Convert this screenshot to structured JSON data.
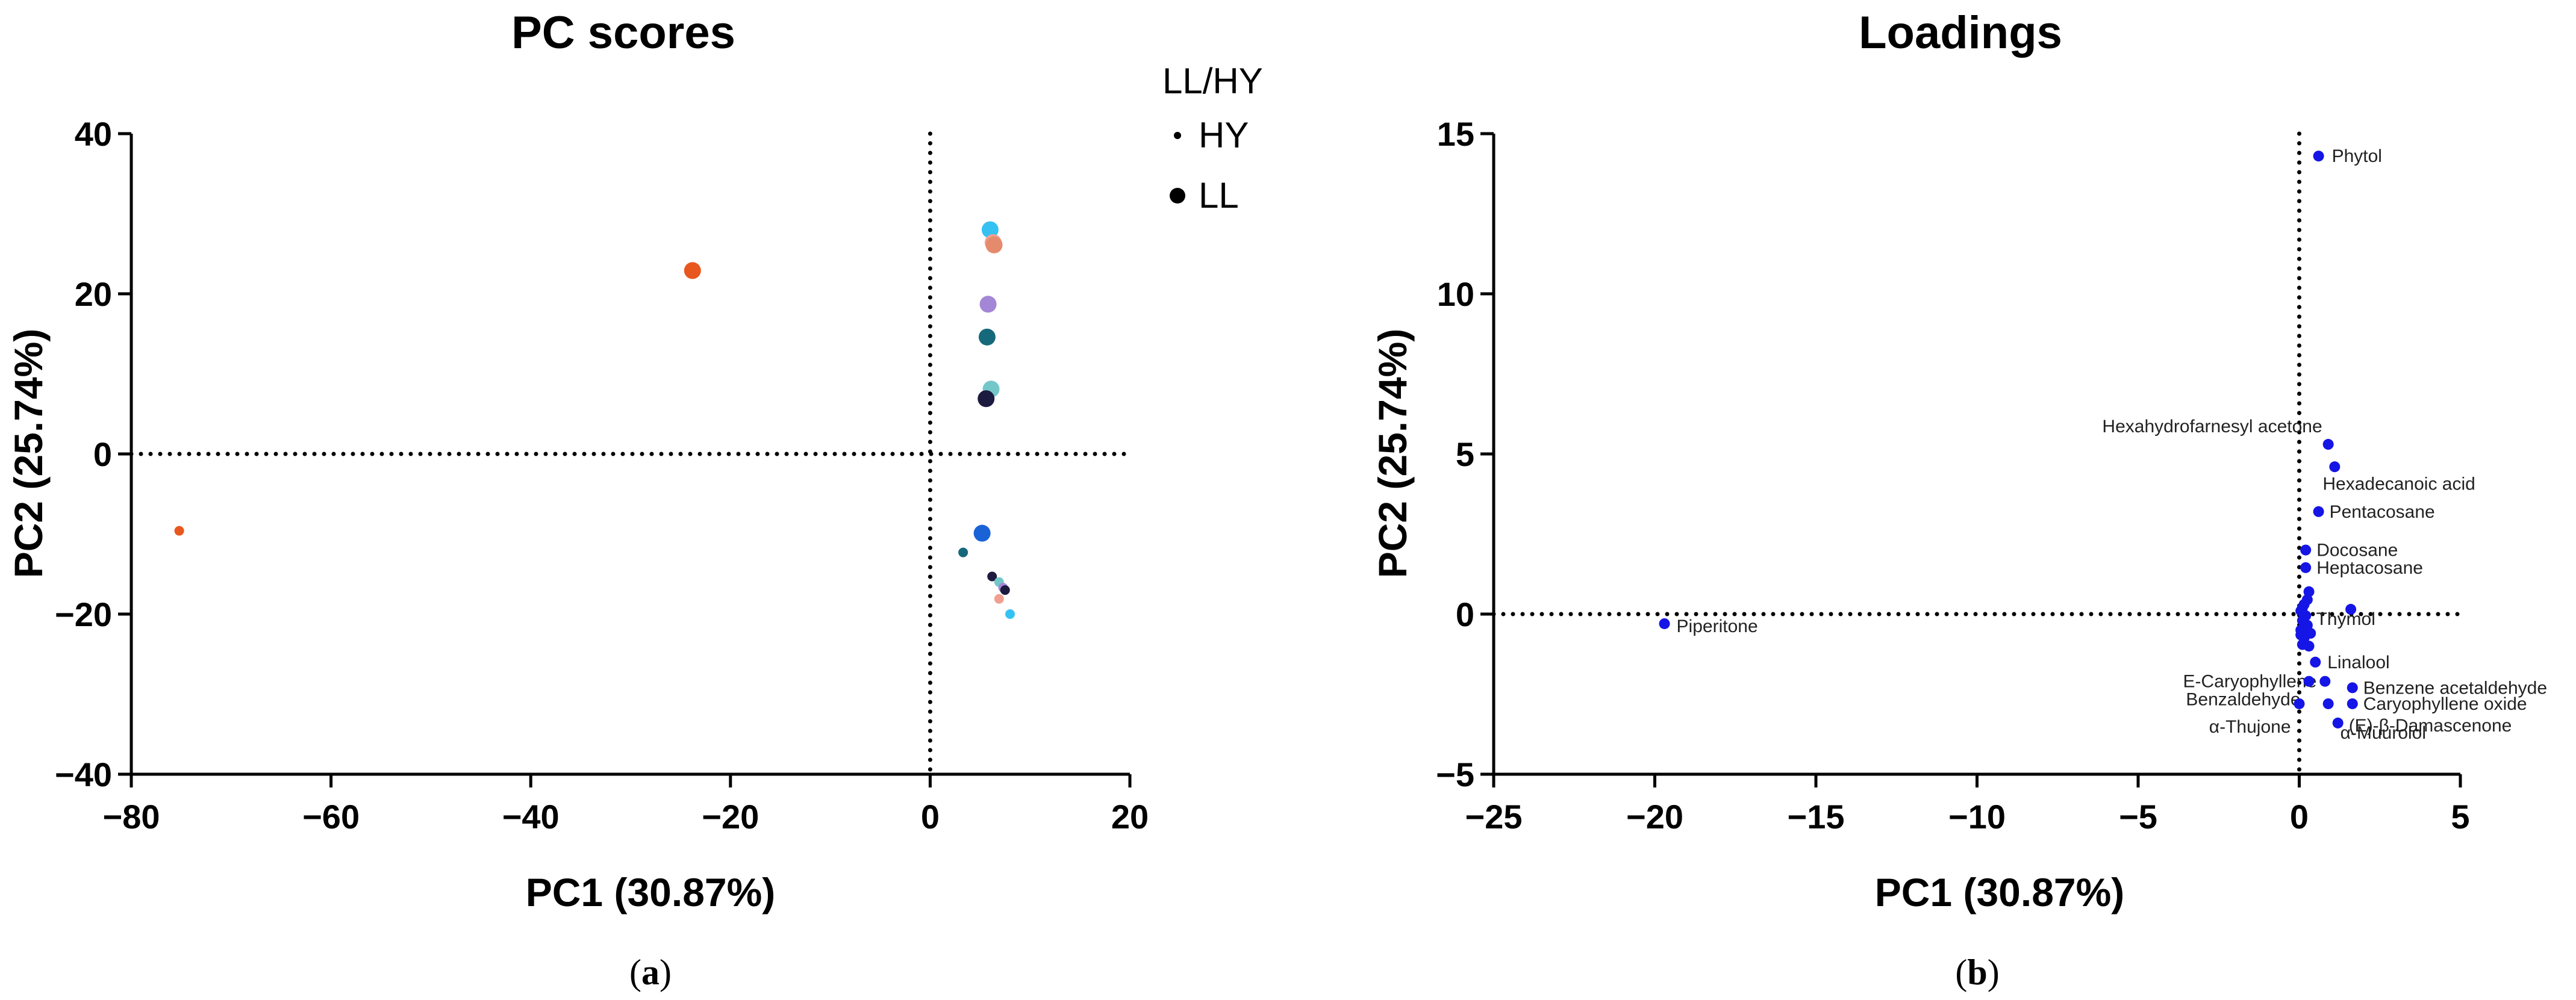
{
  "chart_data": [
    {
      "type": "scatter",
      "panel_label": "a",
      "title": "PC scores",
      "xlabel": "PC1 (30.87%)",
      "ylabel": "PC2 (25.74%)",
      "xlim": [
        -80,
        20
      ],
      "ylim": [
        -40,
        40
      ],
      "xticks": [
        -80,
        -60,
        -40,
        -20,
        0,
        20
      ],
      "yticks": [
        -40,
        -20,
        0,
        20,
        40
      ],
      "reference_lines": {
        "x": 0,
        "y": 0,
        "style": "dotted"
      },
      "legend": {
        "title": "LL/HY",
        "position": "top-right-outside",
        "entries": [
          {
            "label": "HY",
            "size": "small"
          },
          {
            "label": "LL",
            "size": "large"
          }
        ]
      },
      "points": [
        {
          "x": -75.2,
          "y": -9.6,
          "group": "HY",
          "color": "#e8571e"
        },
        {
          "x": -23.8,
          "y": 22.9,
          "group": "LL",
          "color": "#e8571e"
        },
        {
          "x": 6.0,
          "y": 28.0,
          "group": "LL",
          "color": "#35c2f2"
        },
        {
          "x": 6.3,
          "y": 26.4,
          "group": "LL",
          "color": "#f0a090"
        },
        {
          "x": 6.4,
          "y": 26.1,
          "group": "LL",
          "color": "#e58a6c"
        },
        {
          "x": 5.8,
          "y": 18.7,
          "group": "LL",
          "color": "#a486d6"
        },
        {
          "x": 5.7,
          "y": 14.6,
          "group": "LL",
          "color": "#16697a"
        },
        {
          "x": 6.1,
          "y": 8.1,
          "group": "LL",
          "color": "#74c7c9"
        },
        {
          "x": 5.6,
          "y": 6.9,
          "group": "LL",
          "color": "#1c1a3f"
        },
        {
          "x": 5.2,
          "y": -9.9,
          "group": "LL",
          "color": "#1a63d6"
        },
        {
          "x": 3.3,
          "y": -12.3,
          "group": "HY",
          "color": "#16697a"
        },
        {
          "x": 6.2,
          "y": -15.3,
          "group": "HY",
          "color": "#1c1a3f"
        },
        {
          "x": 6.9,
          "y": -16.0,
          "group": "HY",
          "color": "#74c7c9"
        },
        {
          "x": 7.3,
          "y": -16.7,
          "group": "HY",
          "color": "#a486d6"
        },
        {
          "x": 7.5,
          "y": -17.0,
          "group": "HY",
          "color": "#1c1a3f"
        },
        {
          "x": 6.9,
          "y": -18.1,
          "group": "HY",
          "color": "#f0a090"
        },
        {
          "x": 8.0,
          "y": -20.0,
          "group": "HY",
          "color": "#35c2f2"
        }
      ]
    },
    {
      "type": "scatter",
      "panel_label": "b",
      "title": "Loadings",
      "xlabel": "PC1 (30.87%)",
      "ylabel": "PC2 (25.74%)",
      "xlim": [
        -25,
        5
      ],
      "ylim": [
        -5,
        15
      ],
      "xticks": [
        -25,
        -20,
        -15,
        -10,
        -5,
        0,
        5
      ],
      "yticks": [
        -5,
        0,
        5,
        10,
        15
      ],
      "reference_lines": {
        "x": 0,
        "y": 0,
        "style": "dotted"
      },
      "point_color": "#1515e6",
      "points": [
        {
          "x": 0.6,
          "y": 14.3,
          "label": "Phytol"
        },
        {
          "x": 0.9,
          "y": 5.3,
          "label": "Hexahydrofarnesyl acetone"
        },
        {
          "x": 1.1,
          "y": 4.6,
          "label": "Hexadecanoic acid"
        },
        {
          "x": 0.6,
          "y": 3.2,
          "label": "Pentacosane"
        },
        {
          "x": 0.2,
          "y": 2.0,
          "label": "Docosane"
        },
        {
          "x": 0.2,
          "y": 1.45,
          "label": "Heptacosane"
        },
        {
          "x": -19.7,
          "y": -0.3,
          "label": "Piperitone"
        },
        {
          "x": 0.5,
          "y": -1.5,
          "label": "Linalool"
        },
        {
          "x": 0.8,
          "y": -2.1,
          "label": "E-Caryophyllene"
        },
        {
          "x": 1.65,
          "y": -2.3,
          "label": "Benzene acetaldehyde"
        },
        {
          "x": 0.3,
          "y": -2.1,
          "label": "Benzaldehyde"
        },
        {
          "x": 1.65,
          "y": -2.8,
          "label": "Caryophyllene oxide"
        },
        {
          "x": 0.0,
          "y": -2.8,
          "label": "α-Thujone"
        },
        {
          "x": 1.2,
          "y": -3.4,
          "label": "(E)-β-Damascenone"
        },
        {
          "x": 0.9,
          "y": -2.8,
          "label": "α-Muurolol"
        },
        {
          "x": 0.15,
          "y": -0.75,
          "label": "Thymol"
        },
        {
          "x": 1.6,
          "y": 0.15
        },
        {
          "x": 0.3,
          "y": 0.7
        },
        {
          "x": 0.25,
          "y": 0.45
        },
        {
          "x": 0.15,
          "y": 0.3
        },
        {
          "x": 0.05,
          "y": 0.1
        },
        {
          "x": 0.2,
          "y": -0.05
        },
        {
          "x": 0.1,
          "y": -0.2
        },
        {
          "x": 0.25,
          "y": -0.35
        },
        {
          "x": 0.05,
          "y": -0.5
        },
        {
          "x": 0.3,
          "y": -1.0
        },
        {
          "x": 0.1,
          "y": -0.95
        },
        {
          "x": 0.35,
          "y": -0.6
        },
        {
          "x": 0.1,
          "y": 0.2
        },
        {
          "x": 0.05,
          "y": -0.65
        }
      ]
    }
  ]
}
